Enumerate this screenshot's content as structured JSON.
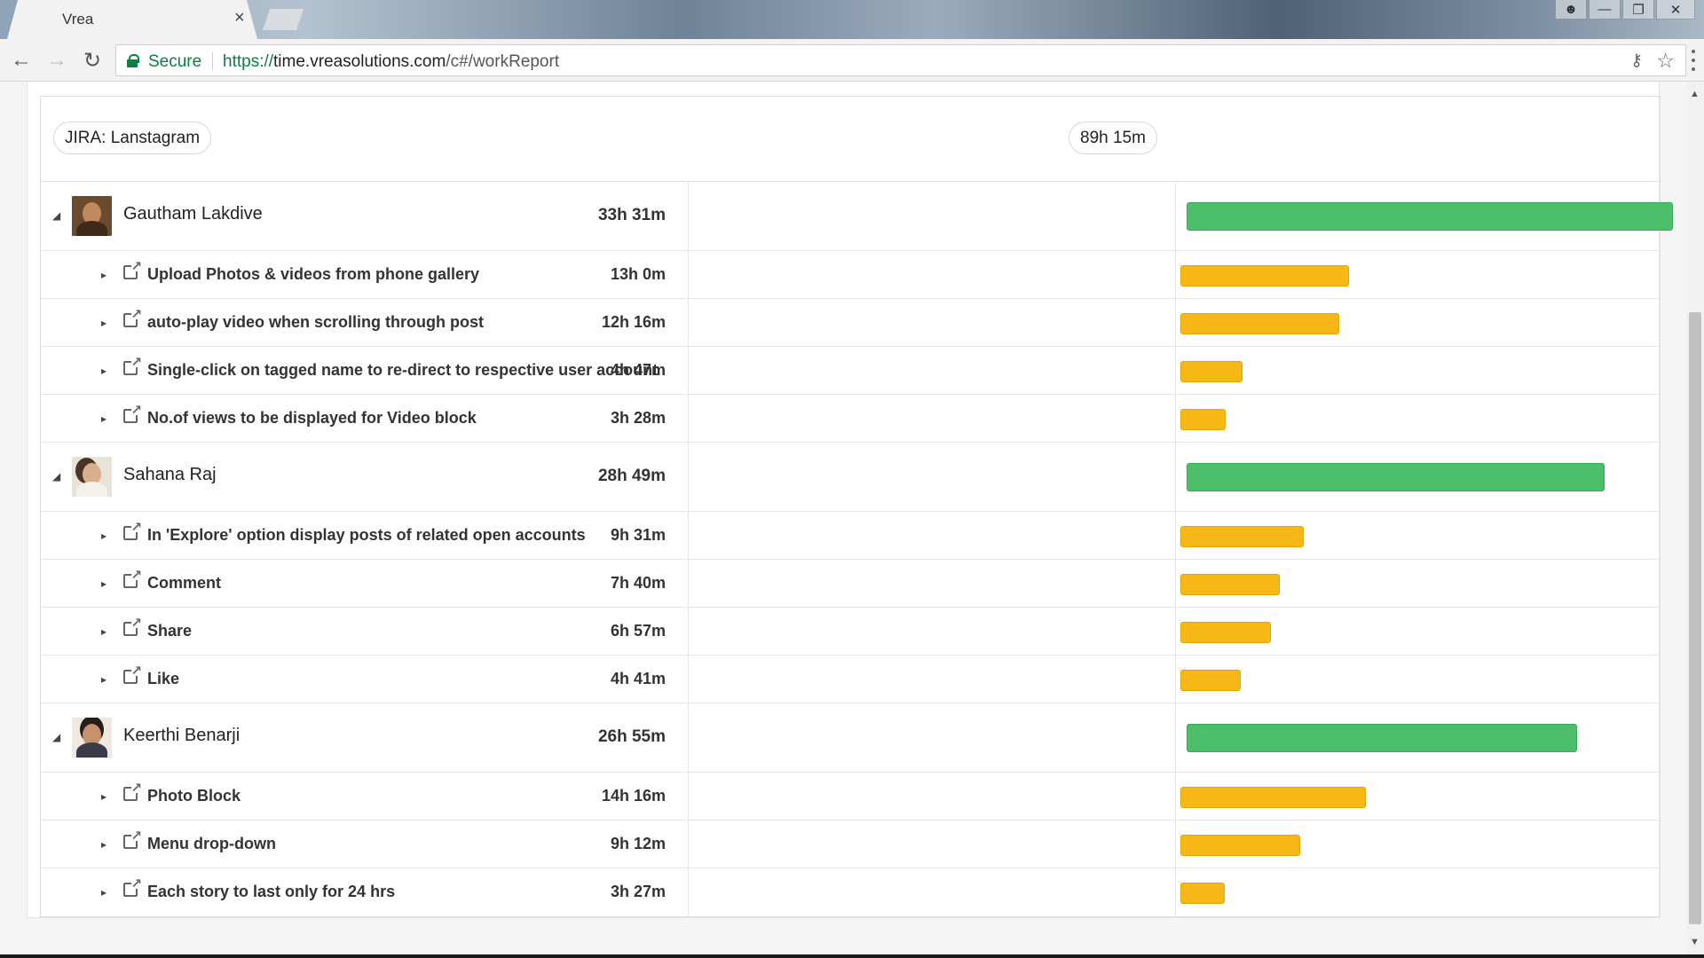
{
  "browser": {
    "tab_title": "Vrea",
    "tab_close": "×",
    "secure_label": "Secure",
    "url_scheme": "https://",
    "url_host": "time.vreasolutions.com",
    "url_path": "/c#/workReport"
  },
  "report": {
    "project_label": "JIRA: Lanstagram",
    "total_duration": "89h 15m",
    "max_hours": 33.5167,
    "users": [
      {
        "name": "Gautham Lakdive",
        "duration": "33h 31m",
        "hours": 33.5167,
        "tasks": [
          {
            "name": "Upload Photos & videos from phone gallery",
            "duration": "13h 0m",
            "hours": 13.0
          },
          {
            "name": "auto-play video when scrolling through post",
            "duration": "12h 16m",
            "hours": 12.2667
          },
          {
            "name": "Single-click on tagged name to re-direct to respective user account",
            "duration": "4h 47m",
            "hours": 4.7833
          },
          {
            "name": "No.of views to be displayed for Video block",
            "duration": "3h 28m",
            "hours": 3.4667
          }
        ]
      },
      {
        "name": "Sahana Raj",
        "duration": "28h 49m",
        "hours": 28.8167,
        "tasks": [
          {
            "name": "In 'Explore' option display posts of related open accounts",
            "duration": "9h 31m",
            "hours": 9.5167
          },
          {
            "name": "Comment",
            "duration": "7h 40m",
            "hours": 7.6667
          },
          {
            "name": "Share",
            "duration": "6h 57m",
            "hours": 6.95
          },
          {
            "name": "Like",
            "duration": "4h 41m",
            "hours": 4.6833
          }
        ]
      },
      {
        "name": "Keerthi Benarji",
        "duration": "26h 55m",
        "hours": 26.9167,
        "tasks": [
          {
            "name": "Photo Block",
            "duration": "14h 16m",
            "hours": 14.2667
          },
          {
            "name": "Menu drop-down",
            "duration": "9h 12m",
            "hours": 9.2
          },
          {
            "name": "Each story to last only for 24 hrs",
            "duration": "3h 27m",
            "hours": 3.45
          }
        ]
      }
    ]
  },
  "colors": {
    "user_bar": "#4dbf6a",
    "task_bar": "#f7b716",
    "secure_green": "#0b8043"
  },
  "icons": {
    "back": "arrow-left-icon",
    "forward": "arrow-right-icon",
    "reload": "reload-icon",
    "lock": "lock-icon",
    "key": "key-icon",
    "star": "star-icon",
    "menu": "kebab-menu-icon",
    "expand": "caret-icon",
    "link": "external-link-icon"
  }
}
